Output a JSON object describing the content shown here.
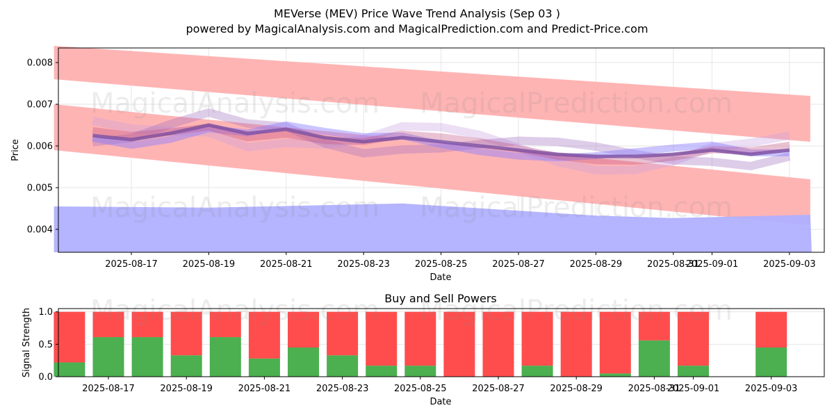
{
  "title_line1": "MEVerse (MEV) Price Wave Trend Analysis (Sep 03 )",
  "title_line2": "powered by MagicalAnalysis.com and MagicalPrediction.com and Predict-Price.com",
  "watermarks": [
    "MagicalAnalysis.com",
    "MagicalPrediction.com"
  ],
  "colors": {
    "sell": "#ff4d4d",
    "buy": "#4caf50",
    "band_red": "#ffb0b0",
    "band_blue": "#b0b0ff",
    "price_line": "#7a4ea0"
  },
  "chart_data": [
    {
      "type": "line",
      "xlabel": "Date",
      "ylabel": "Price",
      "ylim": [
        0.00345,
        0.00835
      ],
      "y_ticks": [
        "0.004",
        "0.005",
        "0.006",
        "0.007",
        "0.008"
      ],
      "x_ticks": [
        "2025-08-17",
        "2025-08-19",
        "2025-08-21",
        "2025-08-23",
        "2025-08-25",
        "2025-08-27",
        "2025-08-29",
        "2025-08-31",
        "2025-09-01",
        "2025-09-03"
      ],
      "grid": true,
      "dates": [
        "2025-08-16",
        "2025-08-17",
        "2025-08-18",
        "2025-08-19",
        "2025-08-20",
        "2025-08-21",
        "2025-08-22",
        "2025-08-23",
        "2025-08-24",
        "2025-08-25",
        "2025-08-26",
        "2025-08-27",
        "2025-08-28",
        "2025-08-29",
        "2025-08-30",
        "2025-08-31",
        "2025-09-01",
        "2025-09-02",
        "2025-09-03"
      ],
      "price": [
        0.00625,
        0.00615,
        0.0063,
        0.0065,
        0.0063,
        0.0064,
        0.0062,
        0.0061,
        0.0062,
        0.0061,
        0.006,
        0.0059,
        0.0058,
        0.00575,
        0.00575,
        0.0058,
        0.0059,
        0.0058,
        0.0059
      ],
      "upper_red_band": {
        "x": [
          "2025-08-15",
          "2025-09-03"
        ],
        "top": [
          0.0084,
          0.0072
        ],
        "bottom": [
          0.0076,
          0.0061
        ]
      },
      "lower_red_band": {
        "x": [
          "2025-08-15",
          "2025-09-03"
        ],
        "top": [
          0.007,
          0.0052
        ],
        "bottom": [
          0.0059,
          0.0041
        ]
      },
      "blue_band": {
        "dates": [
          "2025-08-15",
          "2025-08-19",
          "2025-08-24",
          "2025-08-29",
          "2025-08-31",
          "2025-09-03"
        ],
        "top": [
          0.00455,
          0.00452,
          0.00462,
          0.00433,
          0.00427,
          0.00435
        ]
      }
    },
    {
      "type": "bar",
      "title": "Buy and Sell Powers",
      "xlabel": "Date",
      "ylabel": "Signal Strength",
      "ylim": [
        0,
        1.05
      ],
      "y_ticks": [
        "0.0",
        "0.5",
        "1.0"
      ],
      "x_ticks": [
        "2025-08-17",
        "2025-08-19",
        "2025-08-21",
        "2025-08-23",
        "2025-08-25",
        "2025-08-27",
        "2025-08-29",
        "2025-08-31",
        "2025-09-01",
        "2025-09-03"
      ],
      "dates": [
        "2025-08-16",
        "2025-08-17",
        "2025-08-18",
        "2025-08-19",
        "2025-08-20",
        "2025-08-21",
        "2025-08-22",
        "2025-08-23",
        "2025-08-24",
        "2025-08-25",
        "2025-08-26",
        "2025-08-27",
        "2025-08-28",
        "2025-08-29",
        "2025-08-30",
        "2025-08-31",
        "2025-09-01",
        "2025-09-03"
      ],
      "series": [
        {
          "values": [
            0.22,
            0.61,
            0.61,
            0.33,
            0.61,
            0.28,
            0.45,
            0.33,
            0.17,
            0.17,
            0.0,
            0.0,
            0.17,
            0.0,
            0.05,
            0.56,
            0.17,
            0.45
          ]
        },
        {
          "values": [
            0.78,
            0.39,
            0.39,
            0.67,
            0.39,
            0.72,
            0.55,
            0.67,
            0.83,
            0.83,
            1.0,
            1.0,
            0.83,
            1.0,
            0.95,
            0.44,
            0.83,
            0.55
          ]
        }
      ]
    }
  ]
}
